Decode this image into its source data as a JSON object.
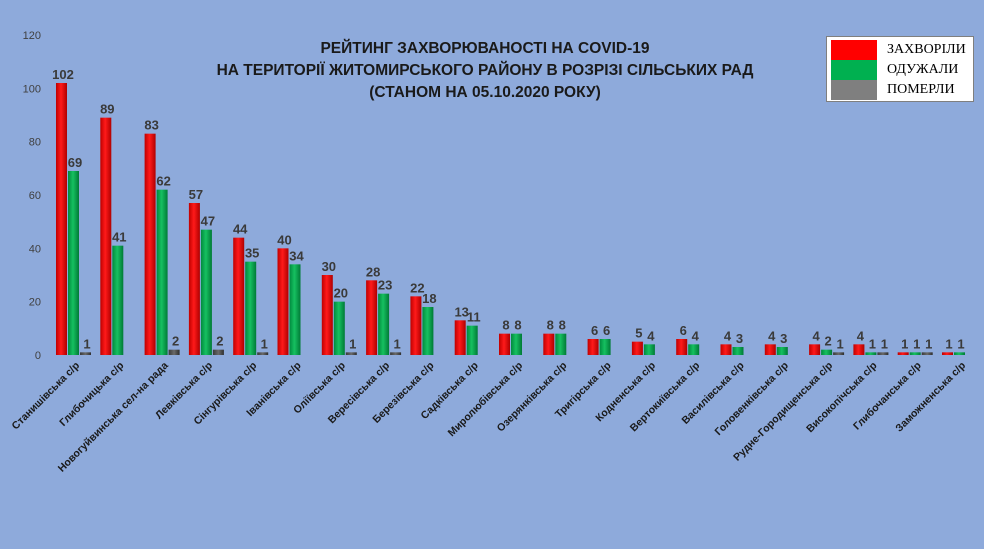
{
  "chart_data": {
    "type": "bar",
    "title_lines": [
      "РЕЙТИНГ ЗАХВОРЮВАНОСТІ НА COVID-19",
      "НА ТЕРИТОРІЇ ЖИТОМИРСЬКОГО РАЙОНУ В РОЗРІЗІ СІЛЬСЬКИХ РАД",
      "(СТАНОМ НА 05.10.2020 РОКУ)"
    ],
    "categories": [
      "Станишівська с/р",
      "Глибочицька с/р",
      "Новогуйвинська сел-на рада",
      "Левківська с/р",
      "Сінгурівська с/р",
      "Іванівська с/р",
      "Оліївська с/р",
      "Вересівська с/р",
      "Березівська с/р",
      "Садківська с/р",
      "Миролюбівська с/р",
      "Озерянківська с/р",
      "Тригірська с/р",
      "Кодненська с/р",
      "Вертокиївська с/р",
      "Василівська с/р",
      "Головенківська с/р",
      "Рудне-Городищенська с/р",
      "Високопічська с/р",
      "Глибочанська с/р",
      "Заможненська с/р"
    ],
    "series": [
      {
        "name": "ЗАХВОРІЛИ",
        "color": "#ff0000",
        "values": [
          102,
          89,
          83,
          57,
          44,
          40,
          30,
          28,
          22,
          13,
          8,
          8,
          6,
          5,
          6,
          4,
          4,
          4,
          4,
          1,
          1
        ]
      },
      {
        "name": "ОДУЖАЛИ",
        "color": "#00b050",
        "values": [
          69,
          41,
          62,
          47,
          35,
          34,
          20,
          23,
          18,
          11,
          8,
          8,
          6,
          4,
          4,
          3,
          3,
          2,
          1,
          1,
          1
        ]
      },
      {
        "name": "ПОМЕРЛИ",
        "color": "#7f7f7f",
        "values": [
          1,
          null,
          2,
          2,
          1,
          null,
          1,
          1,
          null,
          null,
          null,
          null,
          null,
          null,
          null,
          null,
          null,
          1,
          1,
          1,
          null
        ]
      }
    ],
    "ylim": [
      0,
      120
    ],
    "yticks": [
      "0",
      "20",
      "40",
      "60",
      "80",
      "100",
      "120"
    ],
    "grid": false,
    "legend_position": "top-right"
  }
}
